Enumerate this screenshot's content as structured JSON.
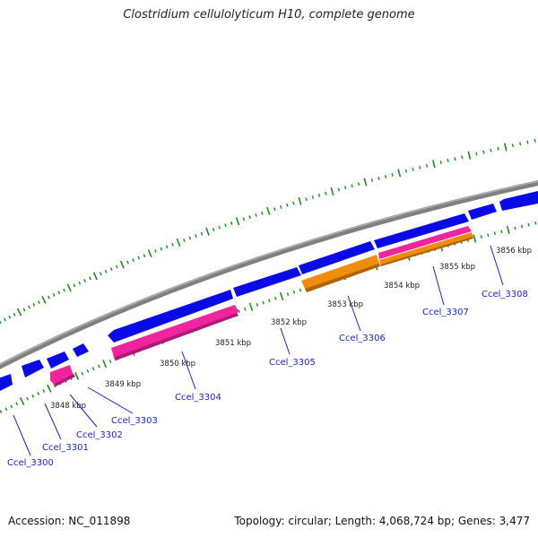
{
  "title": "Clostridium cellulolyticum H10, complete genome",
  "footer": {
    "accession": "Accession: NC_011898",
    "summary": "Topology: circular; Length: 4,068,724 bp; Genes: 3,477"
  },
  "colors": {
    "forward_cds": "#0a0ae6",
    "reverse_cds_pink": "#f0249c",
    "reverse_cds_orange": "#f08c0c",
    "backbone": "#808080",
    "ticks": "#1f8a1f",
    "labels": "#1a24c8"
  },
  "scale_labels": [
    "3848 kbp",
    "3849 kbp",
    "3850 kbp",
    "3851 kbp",
    "3852 kbp",
    "3853 kbp",
    "3854 kbp",
    "3855 kbp",
    "3856 kbp"
  ],
  "gene_labels": [
    "Ccel_3300",
    "Ccel_3301",
    "Ccel_3302",
    "Ccel_3303",
    "Ccel_3304",
    "Ccel_3305",
    "Ccel_3306",
    "Ccel_3307",
    "Ccel_3308"
  ]
}
